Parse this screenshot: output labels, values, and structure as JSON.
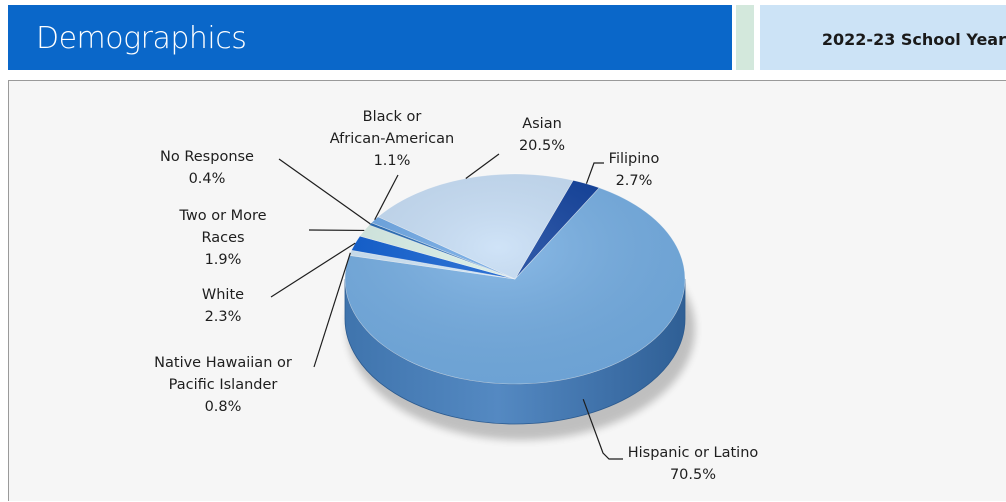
{
  "header": {
    "title": "Demographics",
    "year": "2022-23 School Year"
  },
  "colors": {
    "header_blue": "#0a67c9",
    "year_box": "#cce3f6",
    "gap": "#d3e8dc"
  },
  "chart_data": {
    "type": "pie",
    "style": "3d",
    "legend": "none",
    "slices": [
      {
        "label_lines": [
          "Filipino"
        ],
        "value": 2.7,
        "value_text": "2.7%",
        "color": "#0a3c9b"
      },
      {
        "label_lines": [
          "Hispanic or Latino"
        ],
        "value": 70.5,
        "value_text": "70.5%",
        "color": "#73ade3"
      },
      {
        "label_lines": [
          "Native Hawaiian or",
          "Pacific Islander"
        ],
        "value": 0.8,
        "value_text": "0.8%",
        "color": "#cfe6f8"
      },
      {
        "label_lines": [
          "White"
        ],
        "value": 2.3,
        "value_text": "2.3%",
        "color": "#0a5cd2"
      },
      {
        "label_lines": [
          "Two or More",
          "Races"
        ],
        "value": 1.9,
        "value_text": "1.9%",
        "color": "#d9f0e8"
      },
      {
        "label_lines": [
          "No Response"
        ],
        "value": 0.4,
        "value_text": "0.4%",
        "color": "#1f67b5"
      },
      {
        "label_lines": [
          "Black or",
          "African-American"
        ],
        "value": 1.1,
        "value_text": "1.1%",
        "color": "#6aa6e6"
      },
      {
        "label_lines": [
          "Asian"
        ],
        "value": 20.5,
        "value_text": "20.5%",
        "color": "#c5ddf6"
      }
    ]
  }
}
